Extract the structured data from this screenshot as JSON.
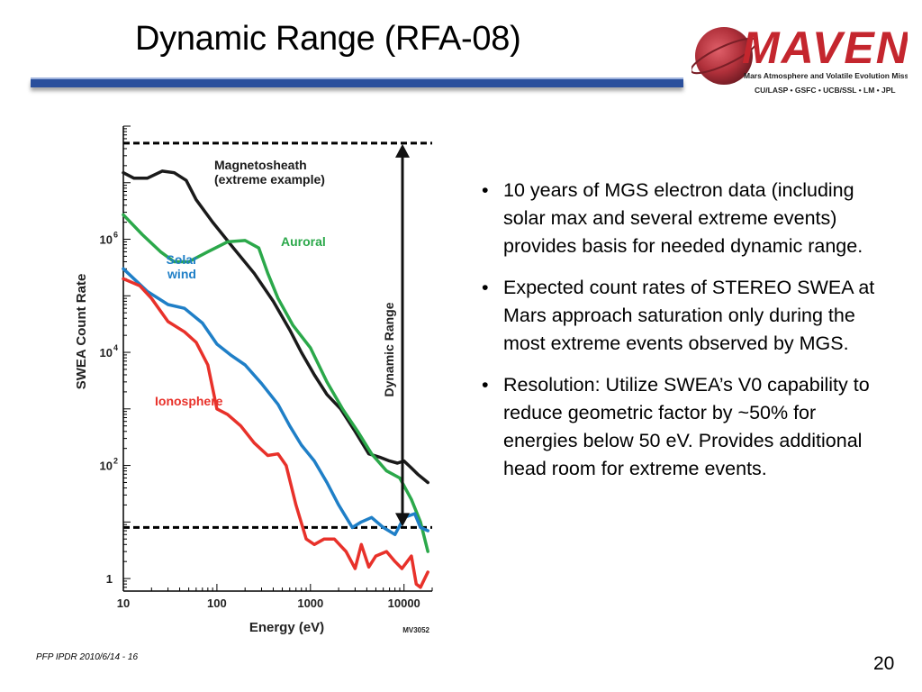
{
  "slide": {
    "title": "Dynamic Range (RFA-08)",
    "footer": "PFP IPDR 2010/6/14 - 16",
    "page_number": "20"
  },
  "logo": {
    "name": "MAVEN",
    "subtitle": "Mars Atmosphere and Volatile Evolution Mission",
    "partners": "CU/LASP • GSFC • UCB/SSL • LM • JPL",
    "colors": {
      "wordmark": "#c4262e",
      "planet": "#b0303a",
      "text": "#1f1f1f"
    }
  },
  "bullets": [
    "10 years of MGS electron data (including solar max and several extreme events) provides basis for needed dynamic range.",
    "Expected count rates of STEREO SWEA at Mars approach saturation only during the most extreme events observed by MGS.",
    "Resolution: Utilize SWEA’s V0 capability to reduce geometric factor by ~50% for energies below 50 eV. Provides additional head room for extreme events."
  ],
  "chart_data": {
    "type": "line",
    "xlabel": "Energy (eV)",
    "ylabel": "SWEA Count Rate",
    "x_scale": "log",
    "y_scale": "log",
    "xlim": [
      10,
      20000
    ],
    "ylim": [
      0.6,
      100000000.0
    ],
    "x_ticks": [
      {
        "value": 10,
        "label": "10"
      },
      {
        "value": 100,
        "label": "100"
      },
      {
        "value": 1000,
        "label": "1000"
      },
      {
        "value": 10000,
        "label": "10000"
      }
    ],
    "y_ticks": [
      {
        "value": 1,
        "base": "1",
        "exp": ""
      },
      {
        "value": 100,
        "base": "10",
        "exp": "2"
      },
      {
        "value": 10000,
        "base": "10",
        "exp": "4"
      },
      {
        "value": 1000000,
        "base": "10",
        "exp": "6"
      }
    ],
    "figure_id": "MV3052",
    "dynamic_range": {
      "label": "Dynamic Range",
      "upper": 50000000,
      "lower": 8
    },
    "series": [
      {
        "name": "Magnetosheath (extreme example)",
        "color": "#1a1a1a",
        "points": [
          [
            10,
            15000000.0
          ],
          [
            13,
            12000000.0
          ],
          [
            18,
            12000000.0
          ],
          [
            26,
            16000000.0
          ],
          [
            35,
            15000000.0
          ],
          [
            47,
            11000000.0
          ],
          [
            60,
            5000000.0
          ],
          [
            90,
            2000000.0
          ],
          [
            150,
            700000.0
          ],
          [
            250,
            250000.0
          ],
          [
            400,
            80000.0
          ],
          [
            600,
            25000.0
          ],
          [
            800,
            10000.0
          ],
          [
            1100,
            4000.0
          ],
          [
            1500,
            1800.0
          ],
          [
            2100,
            1000.0
          ],
          [
            3000,
            400.0
          ],
          [
            4200,
            160.0
          ],
          [
            5500,
            140.0
          ],
          [
            7000,
            120.0
          ],
          [
            8500,
            110.0
          ],
          [
            10000,
            120.0
          ],
          [
            12000,
            90
          ],
          [
            14000,
            70
          ],
          [
            18000,
            50
          ]
        ]
      },
      {
        "name": "Auroral",
        "color": "#2ba84a",
        "points": [
          [
            10,
            2700000.0
          ],
          [
            16,
            1200000.0
          ],
          [
            25,
            600000.0
          ],
          [
            35,
            400000.0
          ],
          [
            50,
            400000.0
          ],
          [
            80,
            600000.0
          ],
          [
            130,
            900000.0
          ],
          [
            200,
            950000.0
          ],
          [
            280,
            700000.0
          ],
          [
            350,
            250000.0
          ],
          [
            450,
            90000.0
          ],
          [
            650,
            30000.0
          ],
          [
            1000,
            12000.0
          ],
          [
            1500,
            3000.0
          ],
          [
            2200,
            1000.0
          ],
          [
            3200,
            400.0
          ],
          [
            4500,
            160.0
          ],
          [
            6500,
            80
          ],
          [
            9000,
            60
          ],
          [
            12000,
            25
          ],
          [
            15000,
            10
          ],
          [
            18000,
            3
          ]
        ]
      },
      {
        "name": "Solar wind",
        "color": "#1f7fc7",
        "points": [
          [
            10,
            300000.0
          ],
          [
            18,
            120000.0
          ],
          [
            30,
            70000.0
          ],
          [
            45,
            60000.0
          ],
          [
            70,
            33000.0
          ],
          [
            100,
            14000.0
          ],
          [
            140,
            9000.0
          ],
          [
            200,
            6000.0
          ],
          [
            300,
            2800.0
          ],
          [
            450,
            1200.0
          ],
          [
            600,
            500.0
          ],
          [
            800,
            230.0
          ],
          [
            1100,
            120.0
          ],
          [
            1500,
            50
          ],
          [
            2000,
            20
          ],
          [
            2800,
            8
          ],
          [
            3500,
            10
          ],
          [
            4500,
            12
          ],
          [
            6000,
            8
          ],
          [
            8000,
            6
          ],
          [
            10000,
            12
          ],
          [
            13000,
            14
          ],
          [
            15000,
            8
          ],
          [
            18000,
            7
          ]
        ]
      },
      {
        "name": "Ionosphere",
        "color": "#e8312a",
        "points": [
          [
            10,
            200000.0
          ],
          [
            15,
            150000.0
          ],
          [
            20,
            90000.0
          ],
          [
            30,
            35000.0
          ],
          [
            45,
            23000.0
          ],
          [
            60,
            15000.0
          ],
          [
            80,
            6000.0
          ],
          [
            100,
            1000.0
          ],
          [
            130,
            800.0
          ],
          [
            180,
            500.0
          ],
          [
            250,
            250.0
          ],
          [
            350,
            150.0
          ],
          [
            450,
            160.0
          ],
          [
            550,
            100.0
          ],
          [
            700,
            20
          ],
          [
            900,
            5
          ],
          [
            1100,
            4
          ],
          [
            1400,
            5
          ],
          [
            1800,
            5
          ],
          [
            2400,
            3
          ],
          [
            3000,
            1.5
          ],
          [
            3500,
            4
          ],
          [
            4200,
            1.6
          ],
          [
            5000,
            2.5
          ],
          [
            6500,
            3
          ],
          [
            8000,
            2
          ],
          [
            9500,
            1.5
          ],
          [
            12000,
            2.5
          ],
          [
            13500,
            0.8
          ],
          [
            15000,
            0.7
          ],
          [
            18000,
            1.3
          ]
        ]
      }
    ],
    "annotations": [
      {
        "text": "Magnetosheath",
        "line2": "(extreme example)",
        "color": "#1a1a1a"
      },
      {
        "text": "Auroral",
        "color": "#2ba84a"
      },
      {
        "text": "Solar",
        "line2": "wind",
        "color": "#1f7fc7"
      },
      {
        "text": "Ionosphere",
        "color": "#e8312a"
      }
    ]
  }
}
